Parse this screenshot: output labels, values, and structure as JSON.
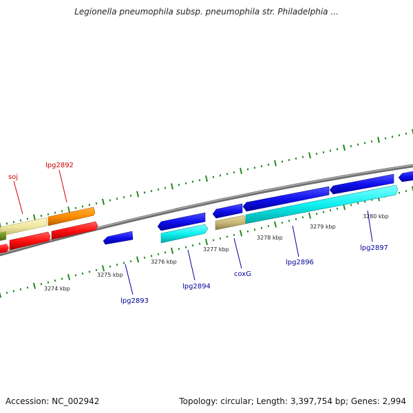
{
  "title": "Legionella pneumophila subsp. pneumophila str. Philadelphia ...",
  "footer": {
    "accession": "Accession: NC_002942",
    "topology": "Topology: circular; Length: 3,397,754 bp; Genes: 2,994"
  },
  "colors": {
    "backbone": "#8a8a8a",
    "tick_green": "#1e8a1e",
    "label_red": "#cc0000",
    "label_blue": "#000099",
    "red": "#ff1010",
    "orange": "#ff8c00",
    "khaki": "#eee7a0",
    "olive": "#6b8e23",
    "blue": "#1010ee",
    "cyan": "#10f0f0",
    "tan": "#c8b878"
  },
  "kbp_labels": [
    "3274 kbp",
    "3275 kbp",
    "3276 kbp",
    "3277 kbp",
    "3278 kbp",
    "3279 kbp",
    "3280 kbp"
  ],
  "gene_labels": [
    {
      "text": "soj",
      "color": "red"
    },
    {
      "text": "lpg2892",
      "color": "red"
    },
    {
      "text": "lpg2893",
      "color": "blue"
    },
    {
      "text": "lpg2894",
      "color": "blue"
    },
    {
      "text": "coxG",
      "color": "blue"
    },
    {
      "text": "lpg2896",
      "color": "blue"
    },
    {
      "text": "lpg2897",
      "color": "blue"
    }
  ]
}
